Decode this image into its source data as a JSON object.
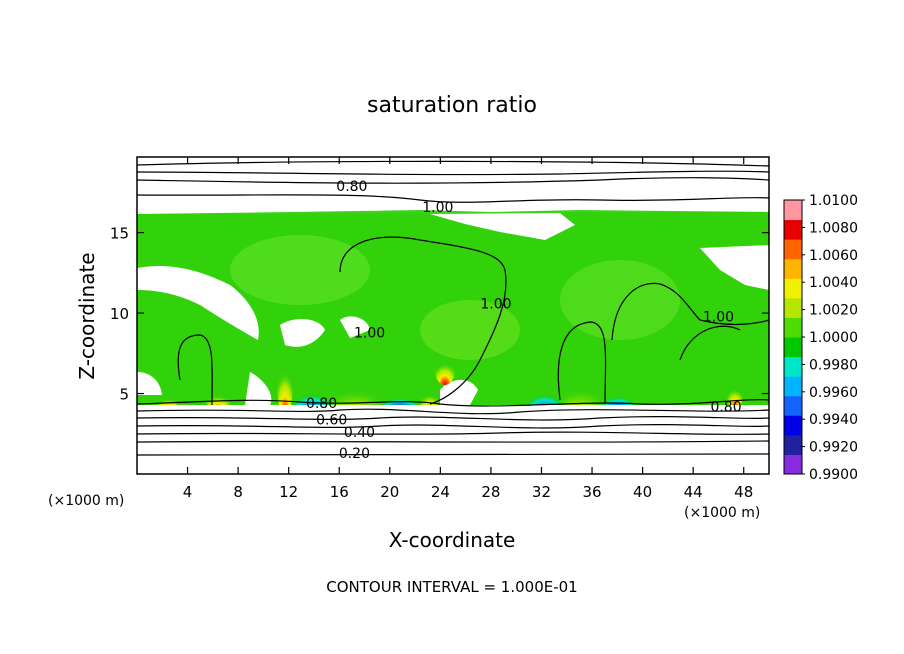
{
  "chart_data": {
    "type": "heatmap",
    "title": "saturation ratio",
    "xlabel": "X-coordinate",
    "ylabel": "Z-coordinate",
    "x_unit": "(×1000 m)",
    "z_unit": "(×1000 m)",
    "footer": "CONTOUR INTERVAL = 1.000E-01",
    "xlim": [
      0,
      50
    ],
    "ylim": [
      0,
      19.7
    ],
    "x_ticks": [
      4,
      8,
      12,
      16,
      20,
      24,
      28,
      32,
      36,
      40,
      44,
      48
    ],
    "y_ticks": [
      5,
      10,
      15
    ],
    "colorbar": {
      "min": 0.99,
      "max": 1.01,
      "ticks": [
        "1.0100",
        "1.0080",
        "1.0060",
        "1.0040",
        "1.0020",
        "1.0000",
        "0.9980",
        "0.9960",
        "0.9940",
        "0.9920",
        "0.9900"
      ],
      "colors": [
        "#8a2be2",
        "#2020a0",
        "#0000e6",
        "#1464ff",
        "#00b4ff",
        "#00e6c8",
        "#00c800",
        "#50dc00",
        "#b4e600",
        "#f0f000",
        "#ffb400",
        "#ff6400",
        "#e60000",
        "#ff96a0"
      ]
    },
    "contour_labels": [
      {
        "value": "0.80",
        "x": 17.0,
        "z": 17.9
      },
      {
        "value": "1.00",
        "x": 23.8,
        "z": 16.6
      },
      {
        "value": "1.00",
        "x": 28.4,
        "z": 10.6
      },
      {
        "value": "1.00",
        "x": 46.0,
        "z": 9.8
      },
      {
        "value": "1.00",
        "x": 18.4,
        "z": 8.8
      },
      {
        "value": "0.80",
        "x": 14.6,
        "z": 4.4
      },
      {
        "value": "0.60",
        "x": 15.4,
        "z": 3.4
      },
      {
        "value": "0.40",
        "x": 17.6,
        "z": 2.6
      },
      {
        "value": "0.20",
        "x": 17.2,
        "z": 1.3
      },
      {
        "value": "0.80",
        "x": 46.6,
        "z": 4.2
      }
    ]
  }
}
